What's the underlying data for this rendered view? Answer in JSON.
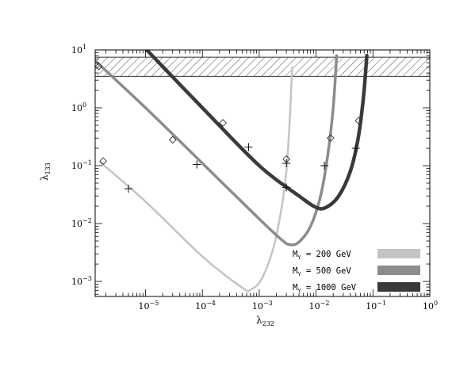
{
  "chart_data": {
    "type": "line",
    "xlabel_main": "λ",
    "xlabel_sub": "232",
    "ylabel_main": "λ",
    "ylabel_sub": "133",
    "x_scale": "log",
    "y_scale": "log",
    "xlim": [
      1.3e-06,
      1
    ],
    "ylim": [
      0.00055,
      10
    ],
    "x_ticks": [
      {
        "value": 1e-05,
        "base": "10",
        "exp": "−5"
      },
      {
        "value": 0.0001,
        "base": "10",
        "exp": "−4"
      },
      {
        "value": 0.001,
        "base": "10",
        "exp": "−3"
      },
      {
        "value": 0.01,
        "base": "10",
        "exp": "−2"
      },
      {
        "value": 0.1,
        "base": "10",
        "exp": "−1"
      },
      {
        "value": 1,
        "base": "10",
        "exp": "0"
      }
    ],
    "y_ticks": [
      {
        "value": 0.001,
        "base": "10",
        "exp": "−3"
      },
      {
        "value": 0.01,
        "base": "10",
        "exp": "−2"
      },
      {
        "value": 0.1,
        "base": "10",
        "exp": "−1"
      },
      {
        "value": 1,
        "base": "10",
        "exp": "0"
      },
      {
        "value": 10,
        "base": "10",
        "exp": "1"
      }
    ],
    "excluded_band": {
      "ymin": 3.5,
      "ymax": 7.5
    },
    "series": [
      {
        "name": "200 GeV",
        "color": "#c4c4c4",
        "width": 2.5,
        "points": [
          [
            1.6e-06,
            0.115
          ],
          [
            1e-05,
            0.024
          ],
          [
            0.0001,
            0.0027
          ],
          [
            0.0005,
            0.00078
          ],
          [
            0.0007,
            0.00072
          ],
          [
            0.0011,
            0.0011
          ],
          [
            0.0018,
            0.004
          ],
          [
            0.0025,
            0.02
          ],
          [
            0.003,
            0.08
          ],
          [
            0.0034,
            0.5
          ],
          [
            0.0038,
            5
          ]
        ],
        "diamonds": [
          [
            1.8e-06,
            0.12
          ],
          [
            0.003,
            0.13
          ]
        ],
        "crosses": [
          [
            5e-06,
            0.04
          ],
          [
            0.003,
            0.11
          ]
        ]
      },
      {
        "name": "500 GeV",
        "color": "#8c8c8c",
        "width": 3.5,
        "points": [
          [
            1.3e-06,
            6.5
          ],
          [
            1e-05,
            1.0
          ],
          [
            0.0001,
            0.11
          ],
          [
            0.001,
            0.012
          ],
          [
            0.0025,
            0.0052
          ],
          [
            0.0035,
            0.0043
          ],
          [
            0.005,
            0.0048
          ],
          [
            0.008,
            0.009
          ],
          [
            0.012,
            0.03
          ],
          [
            0.016,
            0.15
          ],
          [
            0.02,
            1.0
          ],
          [
            0.023,
            8
          ]
        ],
        "diamonds": [
          [
            1.5e-06,
            5.2
          ],
          [
            3e-05,
            0.28
          ],
          [
            0.018,
            0.3
          ]
        ],
        "crosses": [
          [
            8e-05,
            0.105
          ],
          [
            0.014,
            0.1
          ]
        ]
      },
      {
        "name": "1000 GeV",
        "color": "#3a3a3a",
        "width": 4.5,
        "points": [
          [
            1.05e-05,
            10
          ],
          [
            0.0001,
            1.0
          ],
          [
            0.001,
            0.1
          ],
          [
            0.005,
            0.03
          ],
          [
            0.01,
            0.019
          ],
          [
            0.015,
            0.019
          ],
          [
            0.025,
            0.03
          ],
          [
            0.04,
            0.08
          ],
          [
            0.055,
            0.3
          ],
          [
            0.068,
            1.5
          ],
          [
            0.078,
            8
          ]
        ],
        "diamonds": [
          [
            0.00023,
            0.55
          ],
          [
            0.056,
            0.6
          ]
        ],
        "crosses": [
          [
            0.00065,
            0.21
          ],
          [
            0.003,
            0.042
          ],
          [
            0.05,
            0.2
          ]
        ]
      }
    ],
    "legend": [
      {
        "label": "M",
        "sub": "Y",
        "value": " = 200 GeV",
        "color": "#c4c4c4"
      },
      {
        "label": "M",
        "sub": "Y",
        "value": " = 500 GeV",
        "color": "#8c8c8c"
      },
      {
        "label": "M",
        "sub": "Y",
        "value": " = 1000 GeV",
        "color": "#3a3a3a"
      }
    ],
    "legend_position": "bottom-right"
  }
}
